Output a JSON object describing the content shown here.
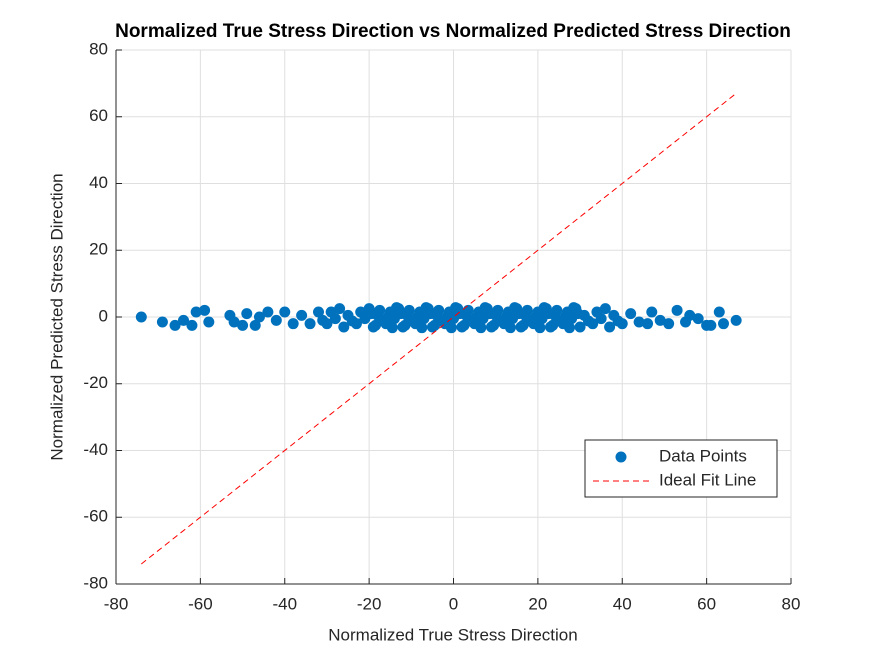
{
  "chart_data": {
    "type": "scatter",
    "title": "Normalized True Stress Direction vs Normalized Predicted Stress Direction",
    "x_label": "Normalized True Stress Direction",
    "y_label": "Normalized Predicted Stress Direction",
    "xlim": [
      -80,
      80
    ],
    "ylim": [
      -80,
      80
    ],
    "xticks": [
      -80,
      -60,
      -40,
      -20,
      0,
      20,
      40,
      60,
      80
    ],
    "yticks": [
      -80,
      -60,
      -40,
      -20,
      0,
      20,
      40,
      60,
      80
    ],
    "grid": true,
    "legend": "lower right",
    "series": [
      {
        "name": "Data Points",
        "color": "#0072BD",
        "type": "scatter",
        "x": [
          -74,
          -69,
          -66,
          -64,
          -62,
          -61,
          -59,
          -58,
          -53,
          -52,
          -50,
          -49,
          -47,
          -46,
          -44,
          -42,
          -40,
          -38,
          -36,
          -34,
          -32,
          -31,
          -30,
          -29,
          -28,
          -27,
          -26,
          -25,
          -24,
          -23,
          -22,
          -21,
          -20,
          -19,
          -18,
          -17,
          -16,
          -15,
          -14,
          -13,
          -12,
          -11,
          -10,
          -9,
          -8,
          -7,
          -6,
          -5,
          -4,
          -3,
          -2,
          -1,
          0,
          1,
          2,
          3,
          4,
          5,
          6,
          7,
          8,
          9,
          10,
          11,
          12,
          13,
          14,
          15,
          16,
          17,
          18,
          19,
          20,
          21,
          22,
          23,
          24,
          25,
          26,
          27,
          28,
          29,
          30,
          31,
          32,
          33,
          34,
          35,
          36,
          37,
          38,
          39,
          40,
          -19.5,
          -18.5,
          -17.5,
          -16.5,
          -15.5,
          -14.5,
          -13.5,
          -12.5,
          -11.5,
          -10.5,
          -9.5,
          -8.5,
          -7.5,
          -6.5,
          -5.5,
          -4.5,
          -3.5,
          -2.5,
          -1.5,
          -0.5,
          0.5,
          1.5,
          2.5,
          3.5,
          4.5,
          5.5,
          6.5,
          7.5,
          8.5,
          9.5,
          10.5,
          11.5,
          12.5,
          13.5,
          14.5,
          15.5,
          16.5,
          17.5,
          18.5,
          19.5,
          20.5,
          21.5,
          22.5,
          23.5,
          24.5,
          25.5,
          26.5,
          27.5,
          28.5,
          29.5,
          42,
          44,
          46,
          47,
          49,
          51,
          53,
          55,
          56,
          58,
          60,
          61,
          63,
          64,
          67
        ],
        "values": [
          0,
          -1.5,
          -2.5,
          -1,
          -2.5,
          1.5,
          2,
          -1.5,
          0.5,
          -1.5,
          -2.5,
          1,
          -2.5,
          0,
          1.5,
          -1,
          1.5,
          -2,
          0.5,
          -2,
          1.5,
          -1,
          -2,
          1.5,
          -0.5,
          2.5,
          -3,
          0.5,
          -1.2,
          -2,
          1.5,
          -0.5,
          2.5,
          -3,
          0.5,
          -1.2,
          -2,
          1.5,
          -0.5,
          2.5,
          -3,
          0.5,
          -1.2,
          -2,
          1.5,
          -0.5,
          2.5,
          -3,
          0.5,
          -1.2,
          -2,
          1.5,
          -0.5,
          2.5,
          -3,
          0.5,
          -1.2,
          -2,
          1.5,
          -0.5,
          2.5,
          -3,
          0.5,
          -1.2,
          -2,
          1.5,
          -0.5,
          2.5,
          -3,
          0.5,
          -1.2,
          -2,
          1.5,
          -0.5,
          2.5,
          -3,
          0.5,
          -1.2,
          -2,
          1.5,
          -0.5,
          2.5,
          -3,
          0.5,
          -1.2,
          -2,
          1.5,
          -0.5,
          2.5,
          -3,
          0.5,
          -1.2,
          -2,
          1,
          -2.5,
          2,
          -1,
          0,
          -3.2,
          2.8,
          1,
          -2.5,
          2,
          -1,
          0,
          -3.2,
          2.8,
          1,
          -2.5,
          2,
          -1,
          0,
          -3.2,
          2.8,
          1,
          -2.5,
          2,
          -1,
          0,
          -3.2,
          2.8,
          1,
          -2.5,
          2,
          -1,
          0,
          -3.2,
          2.8,
          1,
          -2.5,
          2,
          -1,
          0,
          -3.2,
          2.8,
          1,
          -2.5,
          2,
          -1,
          0,
          -3.2,
          2.8,
          1,
          1,
          -1.5,
          -2,
          1.5,
          -1,
          -2,
          2,
          -1.5,
          0.5,
          -0.5,
          -2.5,
          -2.5,
          1.5,
          -2,
          -1
        ]
      },
      {
        "name": "Ideal Fit Line",
        "color": "#FF0000",
        "type": "line",
        "dash": true,
        "x": [
          -74,
          67
        ],
        "values": [
          -74,
          67
        ]
      }
    ]
  }
}
